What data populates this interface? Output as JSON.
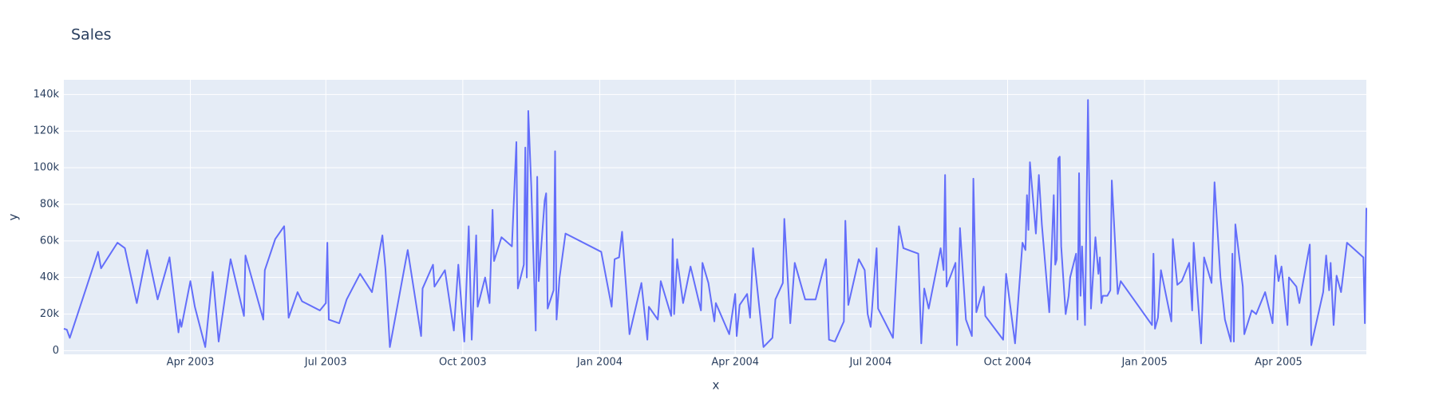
{
  "chart_data": {
    "type": "line",
    "title": "Sales",
    "x_label": "x",
    "y_label": "y",
    "color": "#636efa",
    "grid": true,
    "x": [
      "2003-01-06",
      "2003-01-08",
      "2003-01-10",
      "2003-01-29",
      "2003-01-31",
      "2003-02-11",
      "2003-02-16",
      "2003-02-24",
      "2003-03-03",
      "2003-03-10",
      "2003-03-18",
      "2003-03-24",
      "2003-03-25",
      "2003-03-26",
      "2003-04-01",
      "2003-04-04",
      "2003-04-11",
      "2003-04-16",
      "2003-04-20",
      "2003-04-28",
      "2003-05-07",
      "2003-05-08",
      "2003-05-20",
      "2003-05-21",
      "2003-05-28",
      "2003-06-03",
      "2003-06-06",
      "2003-06-12",
      "2003-06-15",
      "2003-06-27",
      "2003-07-01",
      "2003-07-02",
      "2003-07-03",
      "2003-07-10",
      "2003-07-15",
      "2003-07-24",
      "2003-08-01",
      "2003-08-08",
      "2003-08-10",
      "2003-08-13",
      "2003-08-25",
      "2003-09-03",
      "2003-09-04",
      "2003-09-11",
      "2003-09-12",
      "2003-09-19",
      "2003-09-25",
      "2003-09-28",
      "2003-10-02",
      "2003-10-05",
      "2003-10-07",
      "2003-10-10",
      "2003-10-11",
      "2003-10-16",
      "2003-10-19",
      "2003-10-21",
      "2003-10-22",
      "2003-10-27",
      "2003-11-03",
      "2003-11-06",
      "2003-11-07",
      "2003-11-11",
      "2003-11-12",
      "2003-11-13",
      "2003-11-14",
      "2003-11-16",
      "2003-11-19",
      "2003-11-20",
      "2003-11-21",
      "2003-11-25",
      "2003-11-26",
      "2003-11-27",
      "2003-12-01",
      "2003-12-02",
      "2003-12-03",
      "2003-12-05",
      "2003-12-09",
      "2004-01-02",
      "2004-01-09",
      "2004-01-11",
      "2004-01-14",
      "2004-01-16",
      "2004-01-21",
      "2004-01-29",
      "2004-02-02",
      "2004-02-03",
      "2004-02-09",
      "2004-02-11",
      "2004-02-18",
      "2004-02-19",
      "2004-02-20",
      "2004-02-22",
      "2004-02-26",
      "2004-03-02",
      "2004-03-09",
      "2004-03-10",
      "2004-03-14",
      "2004-03-18",
      "2004-03-19",
      "2004-03-28",
      "2004-04-01",
      "2004-04-02",
      "2004-04-04",
      "2004-04-09",
      "2004-04-11",
      "2004-04-13",
      "2004-04-20",
      "2004-04-26",
      "2004-04-28",
      "2004-05-03",
      "2004-05-04",
      "2004-05-08",
      "2004-05-11",
      "2004-05-18",
      "2004-05-25",
      "2004-06-01",
      "2004-06-03",
      "2004-06-07",
      "2004-06-13",
      "2004-06-14",
      "2004-06-16",
      "2004-06-23",
      "2004-06-27",
      "2004-06-29",
      "2004-07-01",
      "2004-07-05",
      "2004-07-06",
      "2004-07-16",
      "2004-07-18",
      "2004-07-20",
      "2004-07-23",
      "2004-08-02",
      "2004-08-04",
      "2004-08-06",
      "2004-08-09",
      "2004-08-17",
      "2004-08-19",
      "2004-08-20",
      "2004-08-21",
      "2004-08-27",
      "2004-08-28",
      "2004-08-30",
      "2004-09-03",
      "2004-09-07",
      "2004-09-08",
      "2004-09-10",
      "2004-09-15",
      "2004-09-16",
      "2004-09-28",
      "2004-09-30",
      "2004-10-06",
      "2004-10-11",
      "2004-10-13",
      "2004-10-14",
      "2004-10-15",
      "2004-10-16",
      "2004-10-20",
      "2004-10-22",
      "2004-10-24",
      "2004-10-29",
      "2004-11-01",
      "2004-11-02",
      "2004-11-03",
      "2004-11-04",
      "2004-11-05",
      "2004-11-06",
      "2004-11-09",
      "2004-11-11",
      "2004-11-12",
      "2004-11-16",
      "2004-11-17",
      "2004-11-18",
      "2004-11-19",
      "2004-11-20",
      "2004-11-22",
      "2004-11-24",
      "2004-11-26",
      "2004-11-29",
      "2004-12-01",
      "2004-12-02",
      "2004-12-03",
      "2004-12-04",
      "2004-12-07",
      "2004-12-09",
      "2004-12-10",
      "2004-12-14",
      "2004-12-16",
      "2005-01-06",
      "2005-01-07",
      "2005-01-08",
      "2005-01-10",
      "2005-01-12",
      "2005-01-19",
      "2005-01-20",
      "2005-01-23",
      "2005-01-26",
      "2005-01-31",
      "2005-02-02",
      "2005-02-03",
      "2005-02-08",
      "2005-02-10",
      "2005-02-15",
      "2005-02-17",
      "2005-02-21",
      "2005-02-24",
      "2005-02-28",
      "2005-03-01",
      "2005-03-02",
      "2005-03-03",
      "2005-03-08",
      "2005-03-09",
      "2005-03-14",
      "2005-03-17",
      "2005-03-23",
      "2005-03-28",
      "2005-03-30",
      "2005-04-01",
      "2005-04-03",
      "2005-04-07",
      "2005-04-08",
      "2005-04-13",
      "2005-04-15",
      "2005-04-22",
      "2005-04-23",
      "2005-05-01",
      "2005-05-03",
      "2005-05-05",
      "2005-05-06",
      "2005-05-08",
      "2005-05-10",
      "2005-05-13",
      "2005-05-17",
      "2005-05-28",
      "2005-05-29",
      "2005-05-30"
    ],
    "values": [
      12000,
      11500,
      7000,
      54000,
      45000,
      59000,
      56000,
      26000,
      55000,
      28000,
      51000,
      10000,
      17000,
      13000,
      38000,
      24000,
      2000,
      43000,
      5000,
      50000,
      19000,
      52000,
      17000,
      44000,
      61000,
      68000,
      18000,
      32000,
      27000,
      22000,
      26000,
      59000,
      17000,
      15000,
      28000,
      42000,
      32000,
      63000,
      45000,
      2000,
      55000,
      8000,
      34000,
      47000,
      35000,
      44000,
      11000,
      47000,
      5000,
      68000,
      6000,
      63000,
      24000,
      40000,
      26000,
      77000,
      49000,
      62000,
      57000,
      114000,
      34000,
      47000,
      111000,
      40000,
      131000,
      90000,
      11000,
      95000,
      38000,
      82000,
      86000,
      23000,
      33000,
      109000,
      17000,
      40000,
      64000,
      54000,
      24000,
      50000,
      51000,
      65000,
      9000,
      37000,
      6000,
      24000,
      17000,
      38000,
      19000,
      61000,
      20000,
      50000,
      26000,
      46000,
      22000,
      48000,
      37000,
      16000,
      26000,
      9000,
      31000,
      8000,
      25000,
      31000,
      18000,
      56000,
      2000,
      7000,
      28000,
      37000,
      72000,
      15000,
      48000,
      28000,
      28000,
      50000,
      6000,
      5000,
      16000,
      71000,
      25000,
      50000,
      44000,
      20000,
      13000,
      56000,
      23000,
      7000,
      38000,
      68000,
      56000,
      53000,
      4000,
      34000,
      23000,
      56000,
      44000,
      96000,
      35000,
      48000,
      3000,
      67000,
      17000,
      8000,
      94000,
      21000,
      35000,
      19000,
      6000,
      42000,
      4000,
      59000,
      55000,
      85000,
      66000,
      103000,
      64000,
      96000,
      69000,
      21000,
      85000,
      47000,
      50000,
      105000,
      106000,
      57000,
      20000,
      30000,
      40000,
      53000,
      17000,
      97000,
      30000,
      57000,
      14000,
      137000,
      23000,
      62000,
      42000,
      51000,
      26000,
      30000,
      30000,
      33000,
      93000,
      31000,
      38000,
      14000,
      53000,
      12000,
      18000,
      44000,
      16000,
      61000,
      36000,
      38000,
      48000,
      22000,
      59000,
      4000,
      51000,
      37000,
      92000,
      40000,
      17000,
      5000,
      53000,
      5000,
      69000,
      35000,
      9000,
      22000,
      20000,
      32000,
      15000,
      52000,
      38000,
      46000,
      14000,
      40000,
      35000,
      26000,
      58000,
      3000,
      32000,
      52000,
      33000,
      48000,
      14000,
      41000,
      32000,
      59000,
      51000,
      15000,
      78000
    ],
    "xlim": [
      "2003-01-06",
      "2005-05-30"
    ],
    "xticks": [
      {
        "value": "2003-04-01",
        "label": "Apr 2003"
      },
      {
        "value": "2003-07-01",
        "label": "Jul 2003"
      },
      {
        "value": "2003-10-01",
        "label": "Oct 2003"
      },
      {
        "value": "2004-01-01",
        "label": "Jan 2004"
      },
      {
        "value": "2004-04-01",
        "label": "Apr 2004"
      },
      {
        "value": "2004-07-01",
        "label": "Jul 2004"
      },
      {
        "value": "2004-10-01",
        "label": "Oct 2004"
      },
      {
        "value": "2005-01-01",
        "label": "Jan 2005"
      },
      {
        "value": "2005-04-01",
        "label": "Apr 2005"
      }
    ],
    "ylim": [
      -2000,
      148000
    ],
    "yticks": [
      0,
      {
        "value": 20000,
        "label": "20k"
      },
      {
        "value": 40000,
        "label": "40k"
      },
      {
        "value": 60000,
        "label": "60k"
      },
      {
        "value": 80000,
        "label": "80k"
      },
      {
        "value": 100000,
        "label": "100k"
      },
      {
        "value": 120000,
        "label": "120k"
      },
      {
        "value": 140000,
        "label": "140k"
      }
    ]
  }
}
